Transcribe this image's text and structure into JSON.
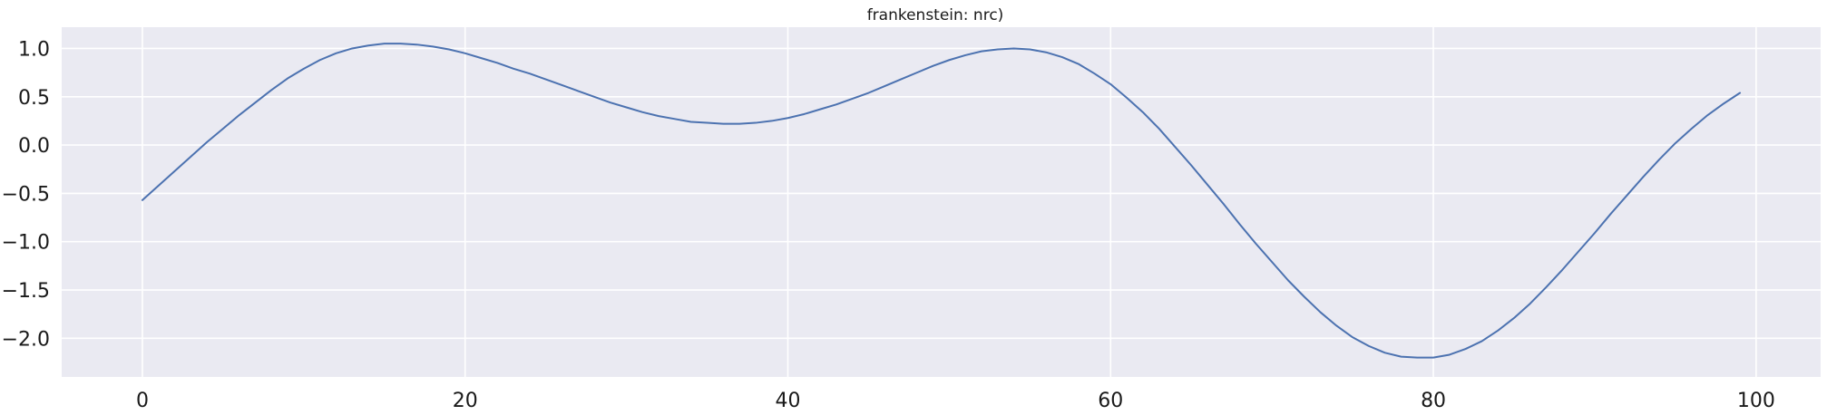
{
  "chart_data": {
    "type": "line",
    "title": "frankenstein: nrc)",
    "xlabel": "",
    "ylabel": "",
    "xlim": [
      -5,
      104
    ],
    "ylim": [
      -2.4,
      1.22
    ],
    "x_ticks": [
      0,
      20,
      40,
      60,
      80,
      100
    ],
    "x_tick_labels": [
      "0",
      "20",
      "40",
      "60",
      "80",
      "100"
    ],
    "y_ticks": [
      1.0,
      0.5,
      0.0,
      -0.5,
      -1.0,
      -1.5,
      -2.0
    ],
    "y_tick_labels": [
      "1.0",
      "0.5",
      "0.0",
      "−0.5",
      "−1.0",
      "−1.5",
      "−2.0"
    ],
    "grid": true,
    "legend": "none",
    "colors": {
      "plot_background": "#eaeaf2",
      "grid": "#ffffff",
      "line": "#4c72b0"
    },
    "series": [
      {
        "x": [
          0,
          1,
          2,
          3,
          4,
          5,
          6,
          7,
          8,
          9,
          10,
          11,
          12,
          13,
          14,
          15,
          16,
          17,
          18,
          19,
          20,
          21,
          22,
          23,
          24,
          25,
          26,
          27,
          28,
          29,
          30,
          31,
          32,
          33,
          34,
          35,
          36,
          37,
          38,
          39,
          40,
          41,
          42,
          43,
          44,
          45,
          46,
          47,
          48,
          49,
          50,
          51,
          52,
          53,
          54,
          55,
          56,
          57,
          58,
          59,
          60,
          61,
          62,
          63,
          64,
          65,
          66,
          67,
          68,
          69,
          70,
          71,
          72,
          73,
          74,
          75,
          76,
          77,
          78,
          79,
          80,
          81,
          82,
          83,
          84,
          85,
          86,
          87,
          88,
          89,
          90,
          91,
          92,
          93,
          94,
          95,
          96,
          97,
          98,
          99
        ],
        "values": [
          -0.57,
          -0.42,
          -0.27,
          -0.12,
          0.03,
          0.17,
          0.31,
          0.44,
          0.57,
          0.69,
          0.79,
          0.88,
          0.95,
          1.0,
          1.03,
          1.05,
          1.05,
          1.04,
          1.02,
          0.99,
          0.95,
          0.9,
          0.85,
          0.79,
          0.74,
          0.68,
          0.62,
          0.56,
          0.5,
          0.44,
          0.39,
          0.34,
          0.3,
          0.27,
          0.24,
          0.23,
          0.22,
          0.22,
          0.23,
          0.25,
          0.28,
          0.32,
          0.37,
          0.42,
          0.48,
          0.54,
          0.61,
          0.68,
          0.75,
          0.82,
          0.88,
          0.93,
          0.97,
          0.99,
          1.0,
          0.99,
          0.96,
          0.91,
          0.84,
          0.74,
          0.63,
          0.49,
          0.34,
          0.17,
          -0.02,
          -0.21,
          -0.41,
          -0.61,
          -0.82,
          -1.02,
          -1.21,
          -1.4,
          -1.57,
          -1.73,
          -1.87,
          -1.99,
          -2.08,
          -2.15,
          -2.19,
          -2.2,
          -2.2,
          -2.17,
          -2.11,
          -2.03,
          -1.92,
          -1.79,
          -1.64,
          -1.47,
          -1.29,
          -1.1,
          -0.91,
          -0.71,
          -0.52,
          -0.33,
          -0.15,
          0.02,
          0.17,
          0.31,
          0.43,
          0.54
        ]
      }
    ]
  }
}
